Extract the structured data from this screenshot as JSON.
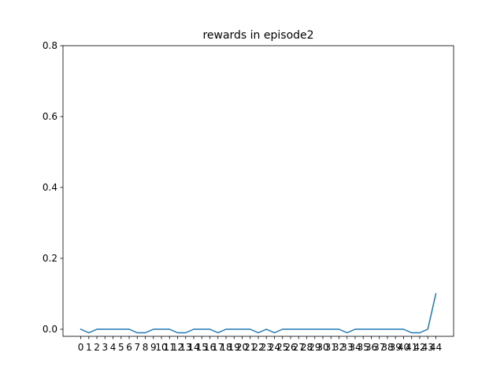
{
  "chart_data": {
    "type": "line",
    "title": "rewards in episode2",
    "xlabel": "",
    "ylabel": "",
    "x": [
      0,
      1,
      2,
      3,
      4,
      5,
      6,
      7,
      8,
      9,
      10,
      11,
      12,
      13,
      14,
      15,
      16,
      17,
      18,
      19,
      20,
      21,
      22,
      23,
      24,
      25,
      26,
      27,
      28,
      29,
      30,
      31,
      32,
      33,
      34,
      35,
      36,
      37,
      38,
      39,
      40,
      41,
      42,
      43,
      44
    ],
    "x_tick_labels": [
      "0",
      "1",
      "2",
      "3",
      "4",
      "5",
      "6",
      "7",
      "8",
      "9",
      "10",
      "11",
      "12",
      "13",
      "14",
      "15",
      "16",
      "17",
      "18",
      "19",
      "20",
      "21",
      "22",
      "23",
      "24",
      "25",
      "26",
      "27",
      "28",
      "29",
      "30",
      "31",
      "32",
      "33",
      "34",
      "35",
      "36",
      "37",
      "38",
      "39",
      "40",
      "41",
      "42",
      "43",
      "44"
    ],
    "series": [
      {
        "values": [
          0,
          -0.01,
          0,
          0,
          0,
          0,
          0,
          -0.01,
          -0.01,
          0,
          0,
          0,
          -0.01,
          -0.01,
          0,
          0,
          0,
          -0.01,
          0,
          0,
          0,
          0,
          -0.01,
          0,
          -0.01,
          0,
          0,
          0,
          0,
          0,
          0,
          0,
          0,
          -0.01,
          0,
          0,
          0,
          0,
          0,
          0,
          0,
          -0.01,
          -0.01,
          0,
          0.1
        ],
        "color": "#1f77b4"
      }
    ],
    "ylim": [
      -0.02,
      0.8
    ],
    "y_ticks": [
      0.0,
      0.2,
      0.4,
      0.6,
      0.8
    ],
    "y_tick_labels": [
      "0.0",
      "0.2",
      "0.4",
      "0.6",
      "0.8"
    ],
    "grid": false,
    "legend": "none"
  }
}
